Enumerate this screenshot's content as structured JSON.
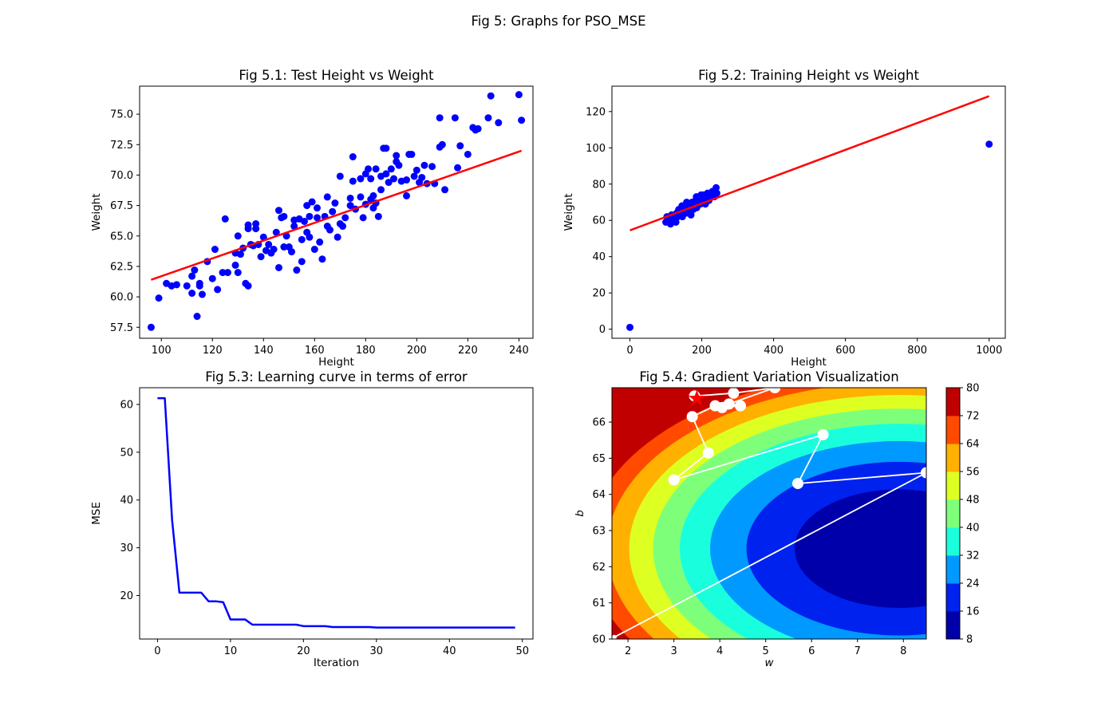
{
  "figure": {
    "suptitle": "Fig 5: Graphs for PSO_MSE"
  },
  "chart_data": [
    {
      "id": "fig51",
      "type": "scatter",
      "title": "Fig 5.1: Test Height vs Weight",
      "xlabel": "Height",
      "ylabel": "Weight",
      "xlim": [
        91.5,
        245.5
      ],
      "ylim": [
        56.6,
        77.3
      ],
      "xticks": [
        100,
        120,
        140,
        160,
        180,
        200,
        220,
        240
      ],
      "yticks": [
        57.5,
        60.0,
        62.5,
        65.0,
        67.5,
        70.0,
        72.5,
        75.0
      ],
      "ytick_labels": [
        "57.5",
        "60.0",
        "62.5",
        "65.0",
        "67.5",
        "70.0",
        "72.5",
        "75.0"
      ],
      "point_color": "#0000ff",
      "line_color": "#ff0000",
      "fit_line": {
        "x": [
          96,
          241
        ],
        "y": [
          61.4,
          72.0
        ]
      },
      "points": [
        [
          96,
          57.5
        ],
        [
          99,
          59.9
        ],
        [
          102,
          61.1
        ],
        [
          104,
          60.9
        ],
        [
          106,
          61.0
        ],
        [
          110,
          60.9
        ],
        [
          112,
          61.7
        ],
        [
          112,
          60.3
        ],
        [
          113,
          62.2
        ],
        [
          114,
          58.4
        ],
        [
          115,
          61.1
        ],
        [
          115,
          60.9
        ],
        [
          116,
          60.2
        ],
        [
          118,
          62.9
        ],
        [
          120,
          61.5
        ],
        [
          121,
          63.9
        ],
        [
          122,
          60.6
        ],
        [
          124,
          62.0
        ],
        [
          125,
          66.4
        ],
        [
          126,
          62.0
        ],
        [
          129,
          63.6
        ],
        [
          129,
          62.6
        ],
        [
          130,
          62.0
        ],
        [
          130,
          65.0
        ],
        [
          131,
          63.5
        ],
        [
          132,
          64.0
        ],
        [
          133,
          61.1
        ],
        [
          134,
          60.9
        ],
        [
          134,
          65.6
        ],
        [
          134,
          65.9
        ],
        [
          135,
          64.3
        ],
        [
          136,
          64.2
        ],
        [
          137,
          65.6
        ],
        [
          137,
          66.0
        ],
        [
          138,
          64.3
        ],
        [
          139,
          63.3
        ],
        [
          140,
          64.9
        ],
        [
          141,
          63.8
        ],
        [
          142,
          64.3
        ],
        [
          143,
          63.6
        ],
        [
          144,
          63.9
        ],
        [
          145,
          65.3
        ],
        [
          146,
          62.4
        ],
        [
          146,
          67.1
        ],
        [
          147,
          66.5
        ],
        [
          148,
          64.1
        ],
        [
          148,
          66.6
        ],
        [
          149,
          65.0
        ],
        [
          150,
          64.1
        ],
        [
          151,
          63.7
        ],
        [
          152,
          65.8
        ],
        [
          152,
          66.3
        ],
        [
          153,
          62.2
        ],
        [
          154,
          66.4
        ],
        [
          155,
          64.7
        ],
        [
          155,
          62.9
        ],
        [
          156,
          66.2
        ],
        [
          157,
          67.5
        ],
        [
          157,
          65.3
        ],
        [
          158,
          64.9
        ],
        [
          158,
          66.6
        ],
        [
          159,
          67.8
        ],
        [
          160,
          63.9
        ],
        [
          161,
          67.3
        ],
        [
          161,
          66.5
        ],
        [
          162,
          64.5
        ],
        [
          163,
          63.1
        ],
        [
          164,
          66.6
        ],
        [
          165,
          68.2
        ],
        [
          165,
          65.8
        ],
        [
          166,
          65.5
        ],
        [
          167,
          67.0
        ],
        [
          168,
          67.7
        ],
        [
          169,
          64.9
        ],
        [
          170,
          66.0
        ],
        [
          170,
          69.9
        ],
        [
          171,
          65.8
        ],
        [
          172,
          66.5
        ],
        [
          174,
          67.5
        ],
        [
          174,
          68.1
        ],
        [
          175,
          69.5
        ],
        [
          175,
          71.5
        ],
        [
          176,
          67.2
        ],
        [
          178,
          68.2
        ],
        [
          178,
          69.7
        ],
        [
          179,
          66.5
        ],
        [
          180,
          67.6
        ],
        [
          180,
          70.1
        ],
        [
          181,
          70.5
        ],
        [
          182,
          68.0
        ],
        [
          182,
          69.7
        ],
        [
          183,
          67.3
        ],
        [
          183,
          68.3
        ],
        [
          184,
          67.7
        ],
        [
          184,
          70.5
        ],
        [
          185,
          66.6
        ],
        [
          186,
          68.8
        ],
        [
          186,
          69.9
        ],
        [
          187,
          72.2
        ],
        [
          188,
          70.1
        ],
        [
          188,
          72.2
        ],
        [
          189,
          69.4
        ],
        [
          190,
          70.5
        ],
        [
          191,
          69.7
        ],
        [
          192,
          71.1
        ],
        [
          192,
          71.6
        ],
        [
          193,
          70.8
        ],
        [
          194,
          69.5
        ],
        [
          196,
          68.3
        ],
        [
          196,
          69.6
        ],
        [
          197,
          71.7
        ],
        [
          198,
          71.7
        ],
        [
          199,
          69.9
        ],
        [
          200,
          70.4
        ],
        [
          201,
          69.4
        ],
        [
          202,
          69.8
        ],
        [
          203,
          70.8
        ],
        [
          204,
          69.3
        ],
        [
          206,
          70.7
        ],
        [
          207,
          69.3
        ],
        [
          209,
          72.3
        ],
        [
          209,
          74.7
        ],
        [
          210,
          72.5
        ],
        [
          211,
          68.8
        ],
        [
          215,
          74.7
        ],
        [
          216,
          70.6
        ],
        [
          217,
          72.4
        ],
        [
          220,
          71.7
        ],
        [
          222,
          73.9
        ],
        [
          223,
          73.7
        ],
        [
          224,
          73.8
        ],
        [
          228,
          74.7
        ],
        [
          229,
          76.5
        ],
        [
          232,
          74.3
        ],
        [
          240,
          76.6
        ],
        [
          241,
          74.5
        ]
      ]
    },
    {
      "id": "fig52",
      "type": "scatter",
      "title": "Fig 5.2: Training Height vs Weight",
      "xlabel": "Height",
      "ylabel": "Weight",
      "xlim": [
        -50,
        1045
      ],
      "ylim": [
        -5,
        134
      ],
      "xticks": [
        0,
        200,
        400,
        600,
        800,
        1000
      ],
      "yticks": [
        0,
        20,
        40,
        60,
        80,
        100,
        120
      ],
      "ytick_labels": [
        "0",
        "20",
        "40",
        "60",
        "80",
        "100",
        "120"
      ],
      "point_color": "#0000ff",
      "line_color": "#ff0000",
      "fit_line": {
        "x": [
          0,
          1000
        ],
        "y": [
          54.5,
          128.5
        ]
      },
      "points": [
        [
          0,
          1
        ],
        [
          1000,
          102
        ],
        [
          100,
          59
        ],
        [
          103,
          62
        ],
        [
          106,
          60
        ],
        [
          110,
          61
        ],
        [
          113,
          58
        ],
        [
          116,
          63
        ],
        [
          120,
          60
        ],
        [
          123,
          62
        ],
        [
          126,
          61
        ],
        [
          130,
          64
        ],
        [
          133,
          62
        ],
        [
          136,
          66
        ],
        [
          140,
          63
        ],
        [
          143,
          65
        ],
        [
          146,
          62
        ],
        [
          150,
          64
        ],
        [
          153,
          67
        ],
        [
          156,
          64
        ],
        [
          160,
          66
        ],
        [
          163,
          68
        ],
        [
          166,
          65
        ],
        [
          170,
          67
        ],
        [
          173,
          70
        ],
        [
          176,
          66
        ],
        [
          180,
          68
        ],
        [
          183,
          71
        ],
        [
          186,
          67
        ],
        [
          190,
          70
        ],
        [
          193,
          73
        ],
        [
          196,
          69
        ],
        [
          200,
          71
        ],
        [
          204,
          74
        ],
        [
          208,
          70
        ],
        [
          212,
          72
        ],
        [
          216,
          75
        ],
        [
          220,
          71
        ],
        [
          225,
          74
        ],
        [
          230,
          76
        ],
        [
          235,
          73
        ],
        [
          240,
          78
        ],
        [
          242,
          75
        ],
        [
          128,
          59
        ],
        [
          145,
          68
        ],
        [
          158,
          70
        ],
        [
          170,
          63
        ],
        [
          185,
          73
        ],
        [
          198,
          74
        ],
        [
          210,
          69
        ]
      ]
    },
    {
      "id": "fig53",
      "type": "line",
      "title": "Fig 5.3: Learning curve in terms of error",
      "xlabel": "Iteration",
      "ylabel": "MSE",
      "xlim": [
        -2.45,
        51.45
      ],
      "ylim": [
        10.9,
        63.5
      ],
      "xticks": [
        0,
        10,
        20,
        30,
        40,
        50
      ],
      "yticks": [
        20,
        30,
        40,
        50,
        60
      ],
      "ytick_labels": [
        "20",
        "30",
        "40",
        "50",
        "60"
      ],
      "line_color": "#0000ff",
      "x": [
        0,
        1,
        2,
        3,
        4,
        5,
        6,
        7,
        8,
        9,
        10,
        11,
        12,
        13,
        14,
        15,
        16,
        17,
        18,
        19,
        20,
        21,
        22,
        23,
        24,
        25,
        26,
        27,
        28,
        29,
        30,
        31,
        32,
        33,
        34,
        35,
        36,
        37,
        38,
        39,
        40,
        41,
        42,
        43,
        44,
        45,
        46,
        47,
        48,
        49
      ],
      "y": [
        61.3,
        61.3,
        35.8,
        20.6,
        20.6,
        20.6,
        20.6,
        18.8,
        18.8,
        18.6,
        15.0,
        15.0,
        15.0,
        13.9,
        13.9,
        13.9,
        13.9,
        13.9,
        13.9,
        13.9,
        13.6,
        13.6,
        13.6,
        13.6,
        13.4,
        13.4,
        13.4,
        13.4,
        13.4,
        13.4,
        13.3,
        13.3,
        13.3,
        13.3,
        13.3,
        13.3,
        13.3,
        13.3,
        13.3,
        13.3,
        13.3,
        13.3,
        13.3,
        13.3,
        13.3,
        13.3,
        13.3,
        13.3,
        13.3,
        13.3
      ]
    },
    {
      "id": "fig54",
      "type": "contour",
      "title": "Fig 5.4: Gradient Variation Visualization",
      "xlabel": "w",
      "ylabel": "b",
      "xlim": [
        1.65,
        8.5
      ],
      "ylim": [
        60.0,
        66.95
      ],
      "xticks": [
        2,
        3,
        4,
        5,
        6,
        7,
        8
      ],
      "yticks": [
        60,
        61,
        62,
        63,
        64,
        65,
        66
      ],
      "ytick_labels": [
        "60",
        "61",
        "62",
        "63",
        "64",
        "65",
        "66"
      ],
      "center": [
        7.9,
        62.5
      ],
      "scales": [
        6.0,
        6.2
      ],
      "base": 9.0,
      "levels": [
        8,
        16,
        24,
        32,
        40,
        48,
        56,
        64,
        72,
        80
      ],
      "colorbar_ticks": [
        8,
        16,
        24,
        32,
        40,
        48,
        56,
        64,
        72,
        80
      ],
      "band_colors": [
        "#0000aa",
        "#0022ee",
        "#0099ff",
        "#19ffdd",
        "#7dff7a",
        "#ddff22",
        "#ffb000",
        "#ff4a00",
        "#c00000"
      ],
      "path_color": "#ffffff",
      "best_marker_color": "#ff0000",
      "path": [
        [
          1.7,
          60.05
        ],
        [
          8.5,
          64.6
        ],
        [
          5.7,
          64.3
        ],
        [
          6.25,
          65.65
        ],
        [
          3.0,
          64.4
        ],
        [
          3.75,
          65.15
        ],
        [
          3.4,
          66.15
        ],
        [
          3.9,
          66.45
        ],
        [
          4.05,
          66.4
        ],
        [
          4.45,
          66.45
        ],
        [
          4.2,
          66.5
        ],
        [
          5.2,
          66.95
        ],
        [
          4.3,
          66.8
        ],
        [
          3.45,
          66.72
        ]
      ],
      "best": [
        3.5,
        66.65
      ]
    }
  ]
}
